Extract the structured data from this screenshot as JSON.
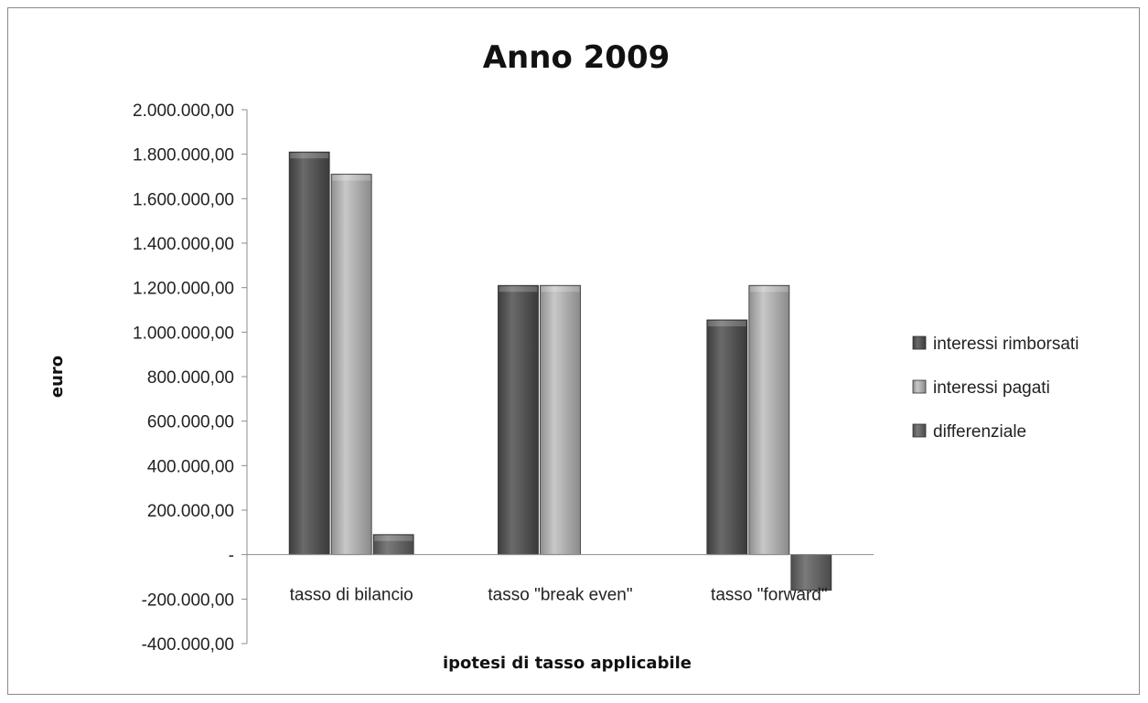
{
  "chart_data": {
    "type": "bar",
    "title": "Anno 2009",
    "xlabel": "ipotesi di tasso applicabile",
    "ylabel": "euro",
    "ylim": [
      -400000,
      2000000
    ],
    "yticks": [
      {
        "value": 2000000,
        "label": "2.000.000,00"
      },
      {
        "value": 1800000,
        "label": "1.800.000,00"
      },
      {
        "value": 1600000,
        "label": "1.600.000,00"
      },
      {
        "value": 1400000,
        "label": "1.400.000,00"
      },
      {
        "value": 1200000,
        "label": "1.200.000,00"
      },
      {
        "value": 1000000,
        "label": "1.000.000,00"
      },
      {
        "value": 800000,
        "label": "800.000,00"
      },
      {
        "value": 600000,
        "label": "600.000,00"
      },
      {
        "value": 400000,
        "label": "400.000,00"
      },
      {
        "value": 200000,
        "label": "200.000,00"
      },
      {
        "value": 0,
        "label": "-"
      },
      {
        "value": -200000,
        "label": "-200.000,00"
      },
      {
        "value": -400000,
        "label": "-400.000,00"
      }
    ],
    "categories": [
      "tasso di bilancio",
      "tasso \"break even\"",
      "tasso \"forward\""
    ],
    "series": [
      {
        "name": "interessi rimborsati",
        "color": "#555555",
        "values": [
          1810000,
          1210000,
          1055000
        ]
      },
      {
        "name": "interessi pagati",
        "color": "#aaaaaa",
        "values": [
          1710000,
          1210000,
          1210000
        ]
      },
      {
        "name": "differenziale",
        "color": "#6a6a6a",
        "values": [
          90000,
          0,
          -160000
        ]
      }
    ],
    "grid": false,
    "legend": "right"
  }
}
